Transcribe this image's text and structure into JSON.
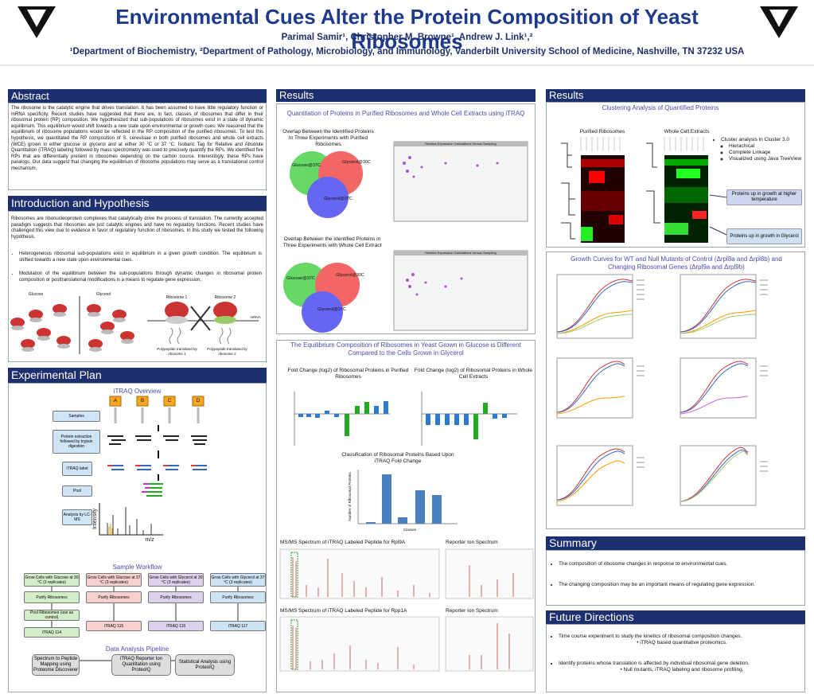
{
  "header": {
    "title": "Environmental Cues Alter the Protein Composition of Yeast Ribosomes",
    "authors": "Parimal Samir¹, Christopher M. Browne¹, Andrew J. Link¹,²",
    "affiliation": "¹Department of Biochemistry, ²Department of Pathology, Microbiology, and Immunology, Vanderbilt University School of Medicine, Nashville, TN 37232 USA"
  },
  "abstract": {
    "heading": "Abstract",
    "text": "The ribosome is the catalytic engine that drives translation. It has been assumed to have little regulatory function or mRNA specificity. Recent studies have suggested that there are, in fact, classes of ribosomes that differ in their ribosomal protein (RP) composition. We hypothesized that sub-populations of ribosomes exist in a state of dynamic equilibrium. This equilibrium would shift towards a new state upon environmental or growth cues. We reasoned that the equilibrium of ribosome populations would be reflected in the RP composition of the purified ribosomes. To test this hypothesis, we quantitated the RP composition of S. cerevisiae in both purified ribosomes and whole cell extracts (WCE) grown in either glucose or glycerol and at either 30 °C or 37 °C. Isobaric Tag for Relative and Absolute Quantitation (iTRAQ) labeling followed by mass spectrometry was used to precisely quantify the RPs. We identified five RPs that are differentially present in ribosomes depending on the carbon source. Interestingly, these RPs have paralogs. Our data suggest that changing the equilibrium of ribosome populations may serve as a translational control mechanism."
  },
  "intro": {
    "heading": "Introduction and Hypothesis",
    "text": "Ribosomes are ribonucleoprotein complexes that catalytically drive the process of translation. The currently accepted paradigm suggests that ribosomes are just catalytic engines and have no regulatory functions. Recent studies have challenged this view due to evidence in favor of regulatory function of ribosomes. In this study we tested the following hypothesis.",
    "bullets": [
      "Heterogeneous ribosomal sub-populations exist in equilibrium in a given growth condition. The equilibrium is shifted towards a new state upon environmental cues.",
      "Modulation of the equilibrium between the sub-populations through dynamic changes in ribosomal protein composition or posttranslational modifications is a means to regulate gene expression."
    ],
    "diagram": {
      "glucose": "Glucose",
      "glycerol": "Glycerol",
      "ribosome1": "Ribosome 1",
      "ribosome2": "Ribosome 2",
      "poly1": "Polypeptide translated by ribosome 1",
      "poly2": "Polypeptide translated by ribosome 2",
      "mrna": "mRNA"
    }
  },
  "plan": {
    "heading": "Experimental Plan",
    "overview": "iTRAQ Overview",
    "tubes": [
      "A",
      "B",
      "C",
      "D"
    ],
    "steps": [
      "Samples",
      "Protein extraction followed by trypsin digestion",
      "iTRAQ label",
      "Pool",
      "Analysis by LC-MS"
    ],
    "intensity": "Intensity",
    "mz": "m/z",
    "workflow": {
      "title": "Sample Workflow",
      "grow": [
        "Grow Cells with Glucose at 30 °C (3 replicates)",
        "Grow Cells with Glucose at 37 °C (3 replicates)",
        "Grow Cells with Glycerol at 30 °C (3 replicates)",
        "Grow Cells with Glycerol at 37 °C (3 replicates)"
      ],
      "purify": "Purify Ribosomes",
      "pool": "Pool Ribosomes (use as control)",
      "labels": [
        "iTRAQ 114",
        "iTRAQ 115",
        "iTRAQ 116",
        "iTRAQ 117"
      ]
    },
    "pipeline": {
      "title": "Data Analysis Pipeline",
      "steps": [
        "Spectrum to Peptide Mapping using Proteome Discoverer",
        "iTRAQ Reporter Ion Quantitation using ProteoIQ",
        "Statistical Analysis using ProteoIQ"
      ]
    }
  },
  "results_mid": {
    "heading": "Results",
    "quant_title": "Quantitation of Proteins in Purified Ribosomes and Whole Cell Extracts using iTRAQ",
    "venn1": {
      "title": "Overlap Between the Identified Proteins In Three Experiments with Purified Ribosomes",
      "labels": [
        "Glucose@37C",
        "Glycerol@30C",
        "Glycerol@37C"
      ]
    },
    "venn2": {
      "title": "Overlap Between the Identified Proteins in Three Experiments with Whole Cell Extract",
      "labels": [
        "Glucose@37C",
        "Glycerol@30C",
        "Glycerol@37C"
      ]
    },
    "scatter_title": "Relative Expression Calculations Versus Sampling",
    "equilibrium_title": "The Equilibrium Composition of Ribosomes in Yeast Grown in Glucose is Different Compared to the Cells Grown in Glycerol",
    "fold_purified": "Fold Change (log2) of Ribosomal Proteins in Purified Ribosomes",
    "fold_wce": "Fold Change (log2) of Ribosomal Proteins in Whole Cell Extracts",
    "classification": {
      "title": "Classification of Ribosomal Proteins  Based Upon iTRAQ Fold Change",
      "ylabel": "Number of Ribosomal Proteins",
      "xlabel": "Classes"
    },
    "msms1": "MS/MS Spectrum of iTRAQ Labeled Peptide for Rpl9A",
    "msms2": "MS/MS Spectrum of iTRAQ Labeled Peptide for Rpp1A",
    "reporter": "Reporter Ion Spectrum"
  },
  "results_right": {
    "heading": "Results",
    "cluster_title": "Clustering Analysis of Quantified Proteins",
    "purified": "Purified Ribosomes",
    "wce": "Whole Cell Extracts",
    "bullet": "Cluster analysis in Cluster 3.0",
    "sub": [
      "Hierachical",
      "Complete Linkage",
      "Visualized using Java TreeView"
    ],
    "callouts": [
      "Proteins up in growth at higher temperature",
      "Proteins up in growth in Glycerol"
    ],
    "growth_title": "Growth Curves for WT and Null Mutants of Control (Δrpl8a and Δrpl8b) and Changing Ribosomal Genes (Δrpl9a and Δrpl9b)"
  },
  "summary": {
    "heading": "Summary",
    "bullets": [
      "The composition of ribosome changes in response to environmental cues.",
      "The changing composition may be an important means of regulating gene expression."
    ]
  },
  "future": {
    "heading": "Future Directions",
    "items": [
      {
        "text": "Time course experiment to study the kinetics of ribosomal composition changes.",
        "sub": "iTRAQ based quantitative proteomics."
      },
      {
        "text": "Identify proteins whose translation is affected by individual ribosomal  gene deletion.",
        "sub": "Null mutants, iTRAQ labeling and ribosome profiling."
      }
    ]
  }
}
